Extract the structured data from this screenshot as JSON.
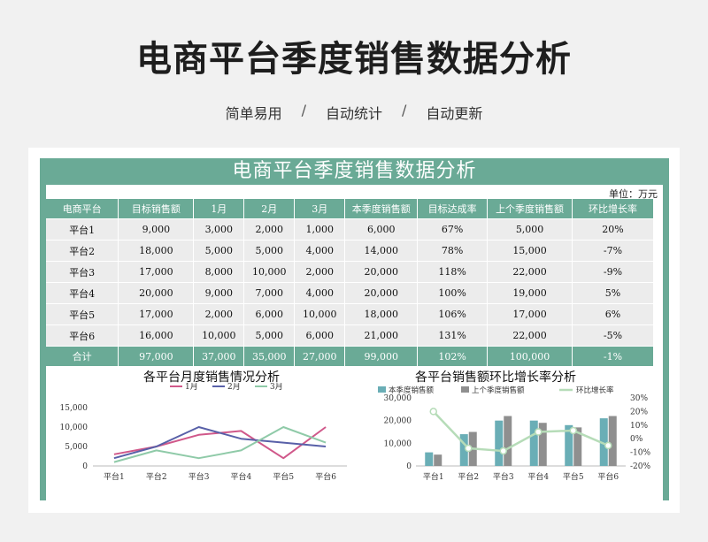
{
  "page": {
    "title": "电商平台季度销售数据分析",
    "tags": [
      "简单易用",
      "自动统计",
      "自动更新"
    ],
    "separator": "/"
  },
  "sheet": {
    "title": "电商平台季度销售数据分析",
    "unit": "单位：万元"
  },
  "table": {
    "headers": [
      "电商平台",
      "目标销售额",
      "1月",
      "2月",
      "3月",
      "本季度销售额",
      "目标达成率",
      "上个季度销售额",
      "环比增长率"
    ],
    "rows": [
      [
        "平台1",
        "9,000",
        "3,000",
        "2,000",
        "1,000",
        "6,000",
        "67%",
        "5,000",
        "20%"
      ],
      [
        "平台2",
        "18,000",
        "5,000",
        "5,000",
        "4,000",
        "14,000",
        "78%",
        "15,000",
        "-7%"
      ],
      [
        "平台3",
        "17,000",
        "8,000",
        "10,000",
        "2,000",
        "20,000",
        "118%",
        "22,000",
        "-9%"
      ],
      [
        "平台4",
        "20,000",
        "9,000",
        "7,000",
        "4,000",
        "20,000",
        "100%",
        "19,000",
        "5%"
      ],
      [
        "平台5",
        "17,000",
        "2,000",
        "6,000",
        "10,000",
        "18,000",
        "106%",
        "17,000",
        "6%"
      ],
      [
        "平台6",
        "16,000",
        "10,000",
        "5,000",
        "6,000",
        "21,000",
        "131%",
        "22,000",
        "-5%"
      ]
    ],
    "total": [
      "合计",
      "97,000",
      "37,000",
      "35,000",
      "27,000",
      "99,000",
      "102%",
      "100,000",
      "-1%"
    ]
  },
  "colors": {
    "accent": "#6aaa96",
    "m1": "#d0588a",
    "m2": "#5860a8",
    "m3": "#8fcaa8",
    "cur": "#6aaeb6",
    "prev": "#8f8f8f",
    "growth": "#b6dcb8"
  },
  "chart_data": [
    {
      "type": "line",
      "title": "各平台月度销售情况分析",
      "categories": [
        "平台1",
        "平台2",
        "平台3",
        "平台4",
        "平台5",
        "平台6"
      ],
      "series": [
        {
          "name": "1月",
          "values": [
            3000,
            5000,
            8000,
            9000,
            2000,
            10000
          ]
        },
        {
          "name": "2月",
          "values": [
            2000,
            5000,
            10000,
            7000,
            6000,
            5000
          ]
        },
        {
          "name": "3月",
          "values": [
            1000,
            4000,
            2000,
            4000,
            10000,
            6000
          ]
        }
      ],
      "ylim": [
        0,
        15000
      ],
      "yticks": [
        "0",
        "5,000",
        "10,000",
        "15,000"
      ],
      "legend": "top"
    },
    {
      "type": "bar",
      "title": "各平台销售额环比增长率分析",
      "categories": [
        "平台1",
        "平台2",
        "平台3",
        "平台4",
        "平台5",
        "平台6"
      ],
      "series": [
        {
          "name": "本季度销售额",
          "values": [
            6000,
            14000,
            20000,
            20000,
            18000,
            21000
          ]
        },
        {
          "name": "上个季度销售额",
          "values": [
            5000,
            15000,
            22000,
            19000,
            17000,
            22000
          ]
        },
        {
          "name": "环比增长率",
          "type": "line",
          "axis": "right",
          "values": [
            20,
            -7,
            -9,
            5,
            6,
            -5
          ]
        }
      ],
      "ylim": [
        0,
        30000
      ],
      "yticks": [
        "0",
        "10,000",
        "20,000",
        "30,000"
      ],
      "y2lim": [
        -20,
        30
      ],
      "y2ticks": [
        "-20%",
        "-10%",
        "0%",
        "10%",
        "20%",
        "30%"
      ],
      "legend": "top"
    }
  ]
}
